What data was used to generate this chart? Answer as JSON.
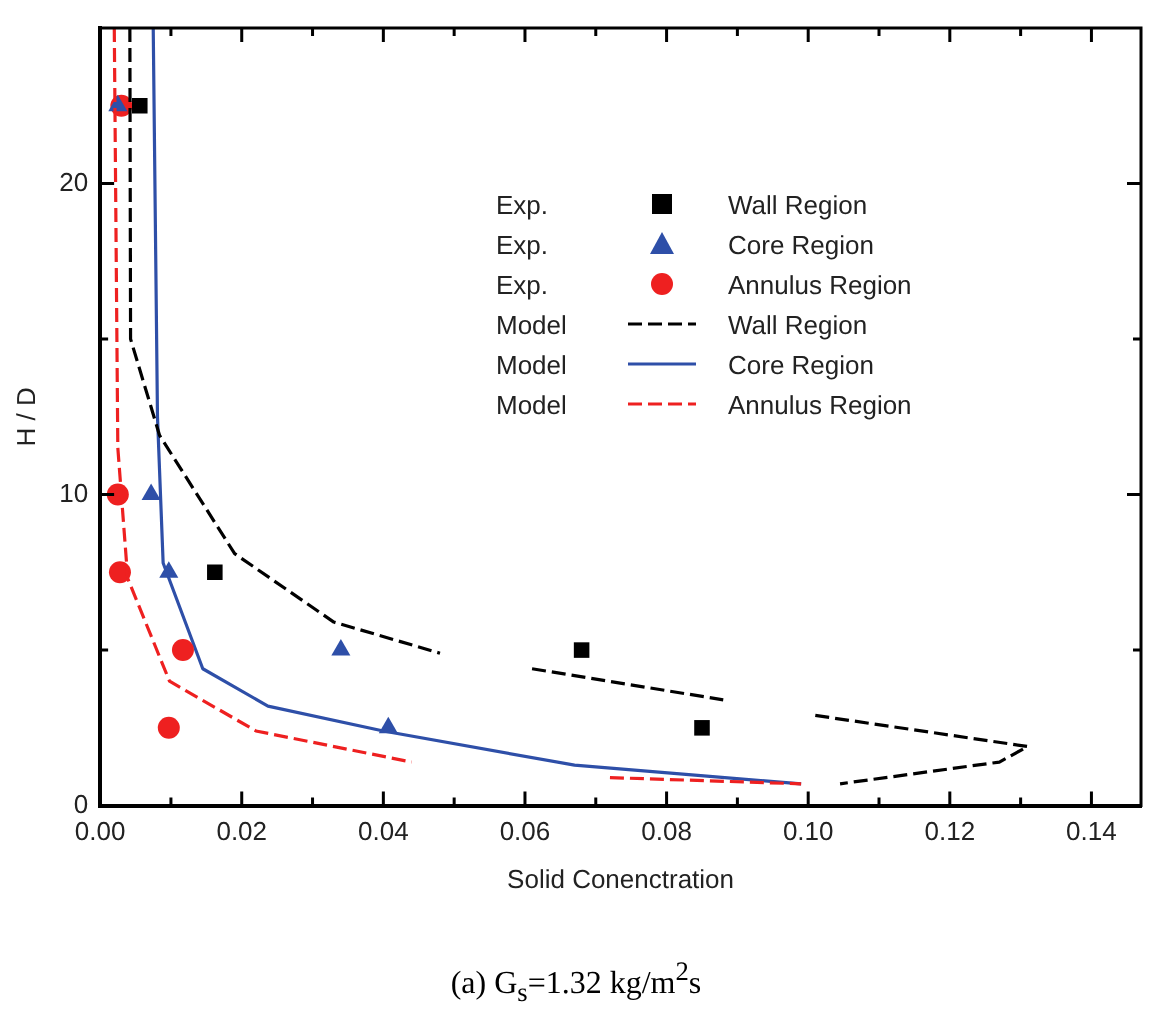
{
  "chart_data": {
    "type": "scatter",
    "xlabel": "Solid Conenctration",
    "ylabel": "H / D",
    "xlim": [
      0,
      0.147
    ],
    "ylim": [
      0,
      25
    ],
    "xticks": [
      {
        "value": 0,
        "label": "0.00"
      },
      {
        "value": 0.01,
        "label": null
      },
      {
        "value": 0.02,
        "label": "0.02"
      },
      {
        "value": 0.03,
        "label": null
      },
      {
        "value": 0.04,
        "label": "0.04"
      },
      {
        "value": 0.05,
        "label": null
      },
      {
        "value": 0.06,
        "label": "0.06"
      },
      {
        "value": 0.07,
        "label": null
      },
      {
        "value": 0.08,
        "label": "0.08"
      },
      {
        "value": 0.09,
        "label": null
      },
      {
        "value": 0.1,
        "label": "0.10"
      },
      {
        "value": 0.11,
        "label": null
      },
      {
        "value": 0.12,
        "label": "0.12"
      },
      {
        "value": 0.13,
        "label": null
      },
      {
        "value": 0.14,
        "label": "0.14"
      }
    ],
    "yticks": [
      0,
      {
        "value": 5,
        "label": null
      },
      10,
      {
        "value": 15,
        "label": null
      },
      20
    ],
    "grid": false,
    "legend": "top right",
    "series": [
      {
        "name": "Wall Region",
        "marker": "square",
        "color": "#000000",
        "x": [
          0.0056,
          0.0162,
          0.068,
          0.085
        ],
        "values": [
          22.5,
          7.5,
          5,
          2.5
        ]
      },
      {
        "name": "Core Region",
        "marker": "triangle",
        "color": "#2e4fa8",
        "x": [
          0.0025,
          0.0072,
          0.0097,
          0.034,
          0.0407
        ],
        "values": [
          22.5,
          10,
          7.5,
          5,
          2.5
        ]
      },
      {
        "name": "Annulus Region",
        "marker": "circle",
        "color": "#ee2020",
        "x": [
          0.003,
          0.0025,
          0.0028,
          0.0117,
          0.0097
        ],
        "values": [
          22.5,
          10,
          7.5,
          5,
          2.5
        ]
      },
      {
        "name": "Wall Region",
        "type": "line",
        "marker": "none",
        "line_style": "dashed",
        "color": "#000000",
        "x": [
          0.0042,
          0.0043,
          0.0084,
          0.019,
          0.033,
          0.048,
          0.055,
          0.061,
          0.088,
          0.095,
          0.101,
          0.131,
          0.127,
          0.1045
        ],
        "values": [
          25,
          15,
          11.9,
          8.1,
          5.9,
          4.9,
          null,
          4.4,
          3.4,
          null,
          2.9,
          1.9,
          1.4,
          0.7
        ]
      },
      {
        "name": "Core Region",
        "type": "line",
        "marker": "none",
        "line_style": "solid",
        "color": "#2e4fa8",
        "x": [
          0.0075,
          0.0081,
          0.0089,
          0.0145,
          0.0237,
          0.04,
          0.067,
          0.099
        ],
        "values": [
          25,
          12.5,
          7.8,
          4.4,
          3.2,
          2.4,
          1.3,
          0.7
        ]
      },
      {
        "name": "Annulus Region",
        "type": "line",
        "marker": "none",
        "line_style": "dashed",
        "color": "#ee2020",
        "x": [
          0.002,
          0.0025,
          0.0039,
          0.0098,
          0.022,
          0.044,
          0.058,
          0.072,
          0.099
        ],
        "values": [
          25,
          11.5,
          7.3,
          4,
          2.4,
          1.4,
          null,
          0.9,
          0.7
        ]
      }
    ],
    "annotations": [
      "Exp.",
      "Exp.",
      "Exp.",
      "Model",
      "Model",
      "Model",
      "(a) G$_{s}$=1.32 kg/m$^{2}$s"
    ]
  }
}
